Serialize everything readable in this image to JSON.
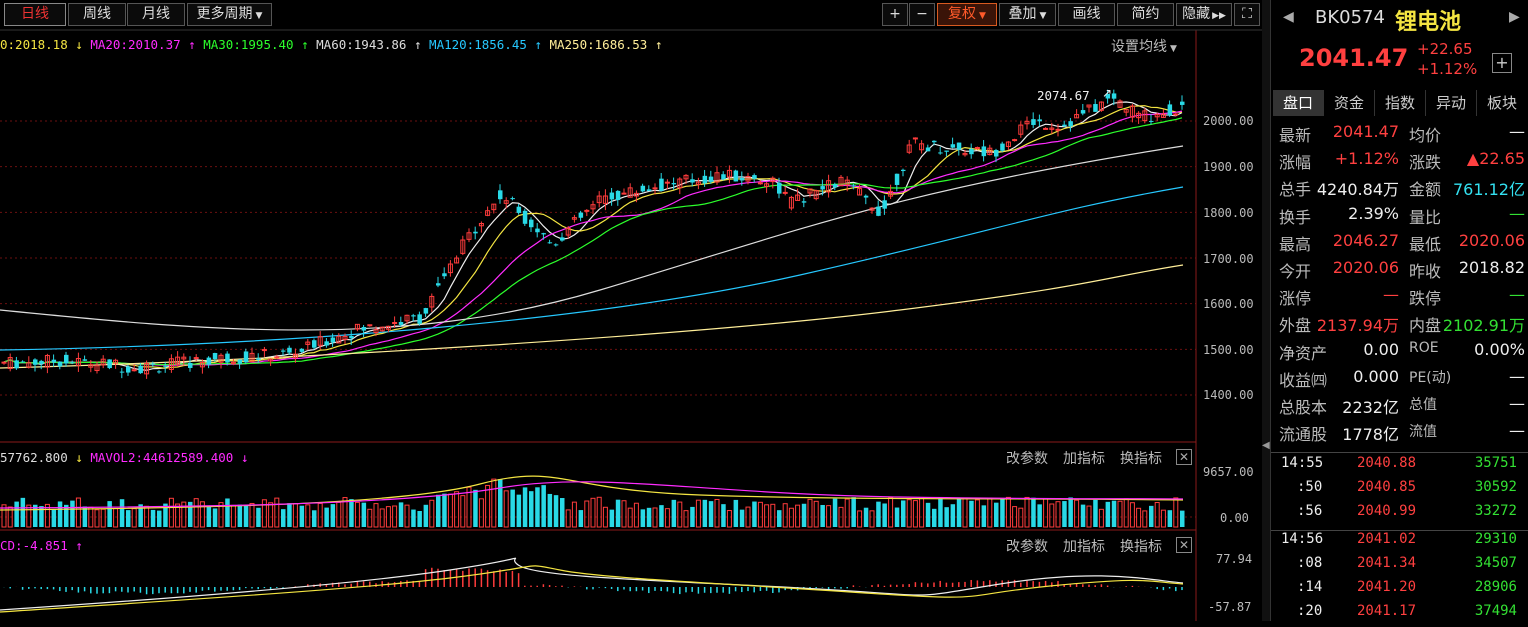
{
  "toolbar": {
    "periods": [
      "日线",
      "周线",
      "月线",
      "更多周期"
    ],
    "zoom_in": "+",
    "zoom_out": "−",
    "fuquan": "复权",
    "diejia": "叠加",
    "huaxian": "画线",
    "jianyue": "简约",
    "yincang": "隐藏",
    "expand": "⛶"
  },
  "ma_legend": {
    "ma10": "0:2018.18",
    "ma20": "MA20:2010.37",
    "ma30": "MA30:1995.40",
    "ma60": "MA60:1943.86",
    "ma120": "MA120:1856.45",
    "ma250": "MA250:1686.53",
    "settings": "设置均线"
  },
  "price_axis": [
    "2000.00",
    "1900.00",
    "1800.00",
    "1700.00",
    "1600.00",
    "1500.00",
    "1400.00"
  ],
  "high_marker": "2074.67",
  "vol_panel": {
    "legend1": "57762.800",
    "legend2": "MAVOL2:44612589.400",
    "axis_top": "9657.00",
    "axis_bottom": "0.00",
    "links": [
      "改参数",
      "加指标",
      "换指标"
    ]
  },
  "macd_panel": {
    "legend": "CD:-4.851",
    "axis_top": "77.94",
    "axis_bottom": "-57.87",
    "links": [
      "改参数",
      "加指标",
      "换指标"
    ]
  },
  "colors": {
    "up": "#ff3c3c",
    "down": "#29d9e6",
    "bg": "#000000",
    "accent": "#d85a20"
  },
  "quote": {
    "code": "BK0574",
    "name": "锂电池",
    "price": "2041.47",
    "change": "+22.65",
    "change_pct": "+1.12%"
  },
  "tabs": [
    "盘口",
    "资金",
    "指数",
    "异动",
    "板块"
  ],
  "stats": [
    {
      "l1": "最新",
      "v1": "2041.47",
      "l2": "均价",
      "v2": "—"
    },
    {
      "l1": "涨幅",
      "v1": "+1.12%",
      "l2": "涨跌",
      "v2": "▲22.65"
    },
    {
      "l1": "总手",
      "v1": "4240.84万",
      "l2": "金额",
      "v2": "761.12亿"
    },
    {
      "l1": "换手",
      "v1": "2.39%",
      "l2": "量比",
      "v2": "—"
    },
    {
      "l1": "最高",
      "v1": "2046.27",
      "l2": "最低",
      "v2": "2020.06"
    },
    {
      "l1": "今开",
      "v1": "2020.06",
      "l2": "昨收",
      "v2": "2018.82"
    },
    {
      "l1": "涨停",
      "v1": "—",
      "l2": "跌停",
      "v2": "—"
    },
    {
      "l1": "外盘",
      "v1": "2137.94万",
      "l2": "内盘",
      "v2": "2102.91万"
    },
    {
      "l1": "净资产",
      "v1": "0.00",
      "l2": "ROE",
      "v2": "0.00%"
    },
    {
      "l1": "收益㈣",
      "v1": "0.000",
      "l2": "PE(动)",
      "v2": "—"
    },
    {
      "l1": "总股本",
      "v1": "2232亿",
      "l2": "总值",
      "v2": "—"
    },
    {
      "l1": "流通股",
      "v1": "1778亿",
      "l2": "流值",
      "v2": "—"
    }
  ],
  "ticks": [
    {
      "time": "14:55",
      "price": "2040.88",
      "vol": "35751"
    },
    {
      "time": ":50",
      "price": "2040.85",
      "vol": "30592"
    },
    {
      "time": ":56",
      "price": "2040.99",
      "vol": "33272"
    },
    {
      "time": "14:56",
      "price": "2041.02",
      "vol": "29310"
    },
    {
      "time": ":08",
      "price": "2041.34",
      "vol": "34507"
    },
    {
      "time": ":14",
      "price": "2041.20",
      "vol": "28906"
    },
    {
      "time": ":20",
      "price": "2041.17",
      "vol": "37494"
    }
  ]
}
